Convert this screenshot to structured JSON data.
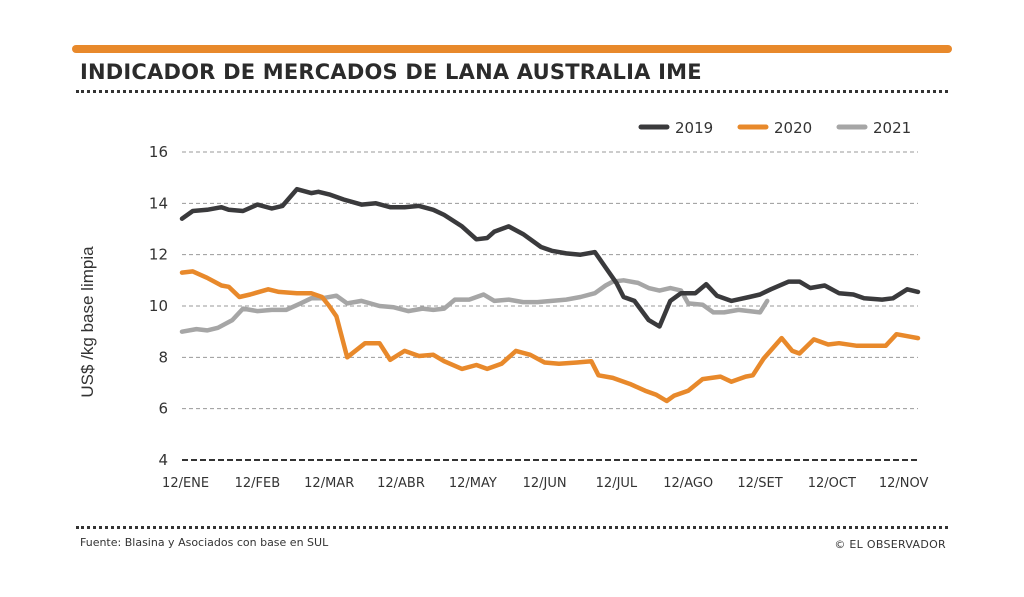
{
  "header": {
    "title": "INDICADOR DE MERCADOS DE LANA AUSTRALIA IME"
  },
  "footer": {
    "source": "Fuente: Blasina y Asociados con base en SUL",
    "credit": "© EL OBSERVADOR"
  },
  "colors": {
    "accent": "#e8892b",
    "series_2019": "#3a3a3c",
    "series_2020": "#e8892b",
    "series_2021": "#a6a6a6"
  },
  "chart_data": {
    "type": "line",
    "title": "INDICADOR DE MERCADOS DE LANA AUSTRALIA IME",
    "xlabel": "",
    "ylabel": "US$ /kg base limpia",
    "ylim": [
      4,
      16
    ],
    "yticks": [
      4,
      6,
      8,
      10,
      12,
      14,
      16
    ],
    "grid": "horizontal dashed",
    "legend_position": "top-right",
    "categories": [
      "12/ENE",
      "12/FEB",
      "12/MAR",
      "12/ABR",
      "12/MAY",
      "12/JUN",
      "12/JUL",
      "12/AGO",
      "12/SET",
      "12/OCT",
      "12/NOV"
    ],
    "x_range": [
      -0.05,
      10.2
    ],
    "series": [
      {
        "name": "2019",
        "color": "#3a3a3c",
        "x": [
          -0.05,
          0.1,
          0.3,
          0.5,
          0.6,
          0.8,
          1.0,
          1.2,
          1.35,
          1.55,
          1.75,
          1.85,
          2.0,
          2.2,
          2.45,
          2.65,
          2.85,
          3.05,
          3.25,
          3.45,
          3.6,
          3.85,
          4.05,
          4.2,
          4.3,
          4.5,
          4.7,
          4.95,
          5.1,
          5.3,
          5.5,
          5.7,
          5.85,
          6.0,
          6.1,
          6.25,
          6.45,
          6.6,
          6.75,
          6.9,
          7.1,
          7.25,
          7.4,
          7.6,
          7.85,
          8.0,
          8.15,
          8.4,
          8.55,
          8.7,
          8.9,
          9.1,
          9.3,
          9.45,
          9.7,
          9.85,
          10.05,
          10.2
        ],
        "values": [
          13.4,
          13.7,
          13.75,
          13.85,
          13.75,
          13.7,
          13.95,
          13.8,
          13.9,
          14.55,
          14.4,
          14.45,
          14.35,
          14.15,
          13.95,
          14.0,
          13.85,
          13.85,
          13.9,
          13.75,
          13.55,
          13.1,
          12.6,
          12.65,
          12.9,
          13.1,
          12.8,
          12.3,
          12.15,
          12.05,
          12.0,
          12.1,
          11.5,
          10.9,
          10.35,
          10.2,
          9.45,
          9.2,
          10.2,
          10.5,
          10.5,
          10.85,
          10.4,
          10.2,
          10.35,
          10.45,
          10.65,
          10.95,
          10.95,
          10.7,
          10.8,
          10.5,
          10.45,
          10.3,
          10.25,
          10.3,
          10.65,
          10.55
        ]
      },
      {
        "name": "2020",
        "color": "#e8892b",
        "x": [
          -0.05,
          0.1,
          0.3,
          0.5,
          0.6,
          0.75,
          0.9,
          1.15,
          1.3,
          1.55,
          1.75,
          1.9,
          2.0,
          2.1,
          2.25,
          2.5,
          2.7,
          2.85,
          3.05,
          3.25,
          3.45,
          3.6,
          3.85,
          4.05,
          4.2,
          4.4,
          4.6,
          4.8,
          5.0,
          5.2,
          5.45,
          5.65,
          5.75,
          5.95,
          6.2,
          6.4,
          6.55,
          6.7,
          6.8,
          7.0,
          7.2,
          7.45,
          7.6,
          7.8,
          7.9,
          8.05,
          8.3,
          8.45,
          8.55,
          8.75,
          8.95,
          9.1,
          9.35,
          9.55,
          9.75,
          9.9,
          10.1,
          10.2
        ],
        "values": [
          11.3,
          11.35,
          11.1,
          10.8,
          10.75,
          10.35,
          10.45,
          10.65,
          10.55,
          10.5,
          10.5,
          10.35,
          10.0,
          9.6,
          8.0,
          8.55,
          8.55,
          7.9,
          8.25,
          8.05,
          8.1,
          7.85,
          7.55,
          7.7,
          7.55,
          7.75,
          8.25,
          8.1,
          7.8,
          7.75,
          7.8,
          7.85,
          7.3,
          7.2,
          6.95,
          6.7,
          6.55,
          6.3,
          6.5,
          6.7,
          7.15,
          7.25,
          7.05,
          7.25,
          7.3,
          7.95,
          8.75,
          8.25,
          8.15,
          8.7,
          8.5,
          8.55,
          8.45,
          8.45,
          8.45,
          8.9,
          8.8,
          8.75
        ]
      },
      {
        "name": "2021",
        "color": "#a6a6a6",
        "x": [
          -0.05,
          0.15,
          0.3,
          0.45,
          0.65,
          0.8,
          1.0,
          1.2,
          1.4,
          1.6,
          1.75,
          1.9,
          2.1,
          2.25,
          2.45,
          2.7,
          2.9,
          3.1,
          3.3,
          3.45,
          3.6,
          3.75,
          3.95,
          4.15,
          4.3,
          4.5,
          4.7,
          4.9,
          5.1,
          5.3,
          5.5,
          5.7,
          5.85,
          5.95,
          6.1,
          6.3,
          6.45,
          6.6,
          6.75,
          6.9,
          7.0,
          7.2,
          7.35,
          7.5,
          7.7,
          7.85,
          8.0,
          8.1
        ],
        "values": [
          9.0,
          9.1,
          9.05,
          9.15,
          9.45,
          9.9,
          9.8,
          9.85,
          9.85,
          10.1,
          10.3,
          10.3,
          10.4,
          10.1,
          10.2,
          10.0,
          9.95,
          9.8,
          9.9,
          9.85,
          9.9,
          10.25,
          10.25,
          10.45,
          10.2,
          10.25,
          10.15,
          10.15,
          10.2,
          10.25,
          10.35,
          10.5,
          10.8,
          10.95,
          11.0,
          10.9,
          10.7,
          10.6,
          10.7,
          10.6,
          10.1,
          10.05,
          9.75,
          9.75,
          9.85,
          9.8,
          9.75,
          10.2
        ]
      }
    ]
  }
}
